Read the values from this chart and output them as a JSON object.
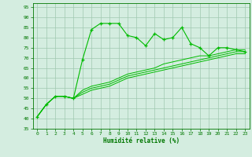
{
  "x_main": [
    0,
    1,
    2,
    3,
    4,
    5,
    6,
    7,
    8,
    9,
    10,
    11,
    12,
    13,
    14,
    15,
    16,
    17,
    18,
    19,
    20,
    21,
    22,
    23
  ],
  "y_main": [
    41,
    47,
    51,
    51,
    50,
    69,
    84,
    87,
    87,
    87,
    81,
    80,
    76,
    82,
    79,
    80,
    85,
    77,
    75,
    71,
    75,
    75,
    74,
    73
  ],
  "y_line2": [
    41,
    47,
    51,
    51,
    50,
    54,
    56,
    57,
    58,
    60,
    62,
    63,
    64,
    65,
    67,
    68,
    69,
    70,
    71,
    71,
    72,
    73,
    74,
    74
  ],
  "y_line3": [
    41,
    47,
    51,
    51,
    50,
    53,
    55,
    56,
    57,
    59,
    61,
    62,
    63,
    64,
    65,
    66,
    67,
    68,
    69,
    70,
    71,
    72,
    73,
    73
  ],
  "y_line4": [
    41,
    47,
    51,
    51,
    50,
    52,
    54,
    55,
    56,
    58,
    60,
    61,
    62,
    63,
    64,
    65,
    66,
    67,
    68,
    69,
    70,
    71,
    72,
    72
  ],
  "line_color": "#00bb00",
  "bg_color": "#d4ede0",
  "grid_color": "#a0c8b0",
  "xlabel": "Humidité relative (%)",
  "xlim": [
    -0.5,
    23.5
  ],
  "ylim": [
    35,
    97
  ],
  "yticks": [
    35,
    40,
    45,
    50,
    55,
    60,
    65,
    70,
    75,
    80,
    85,
    90,
    95
  ],
  "xticks": [
    0,
    1,
    2,
    3,
    4,
    5,
    6,
    7,
    8,
    9,
    10,
    11,
    12,
    13,
    14,
    15,
    16,
    17,
    18,
    19,
    20,
    21,
    22,
    23
  ]
}
